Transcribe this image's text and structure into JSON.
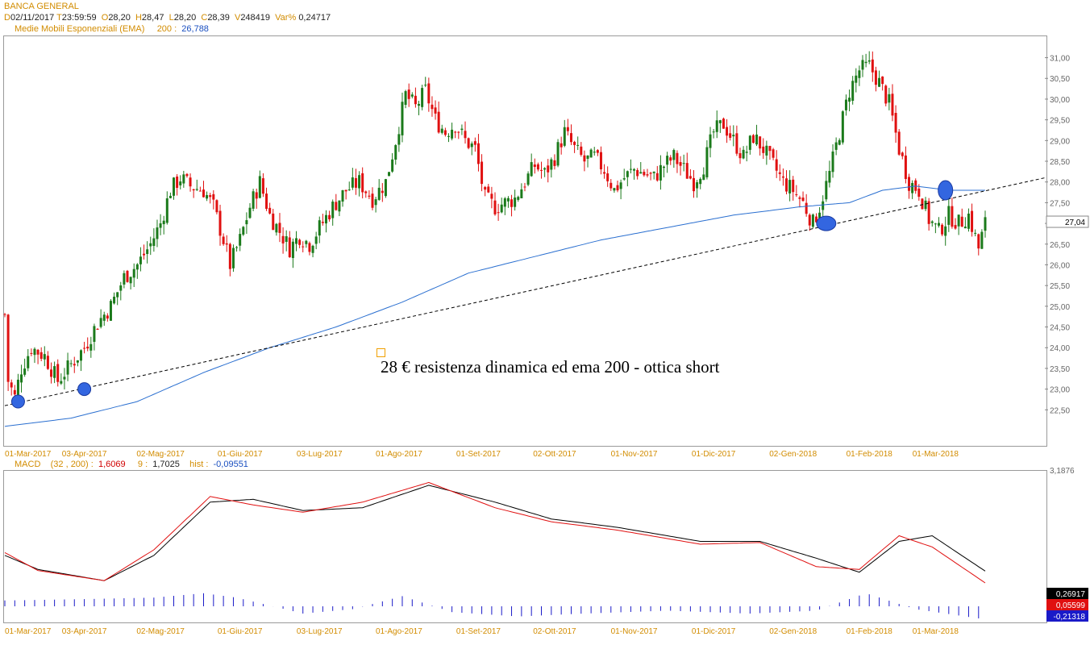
{
  "header": {
    "title": "BANCA GENERAL",
    "d_label": "D",
    "date": "02/11/2017",
    "t_label": "T",
    "time": "23:59:59",
    "o_label": "O",
    "open": "28,20",
    "h_label": "H",
    "high": "28,47",
    "l_label": "L",
    "low": "28,20",
    "c_label": "C",
    "close": "28,39",
    "v_label": "V",
    "volume": "248419",
    "var_label": "Var%",
    "var": "0,24717",
    "ema_label": "Medie Mobili Esponenziali (EMA)",
    "ema_period": "200 :",
    "ema_value": "26,788"
  },
  "macd_header": {
    "label": "MACD",
    "params": "(32 , 200) :",
    "value": "1,6069",
    "signal_period": "9 :",
    "signal_value": "1,7025",
    "hist_label": "hist :",
    "hist_value": "-0,09551"
  },
  "annotation": "28 € resistenza dinamica ed ema 200 - ottica short",
  "price_badge": "27,04",
  "macd_badges": [
    "0,26917",
    "0,05599",
    "-0,21318"
  ],
  "macd_axis_top": "3,1876",
  "colors": {
    "up": "#1b7a1b",
    "down": "#e01010",
    "ema": "#2a6fd0",
    "macd": "#000000",
    "signal": "#e01010",
    "hist": "#1a1ac8",
    "axis_text": "#d28c00",
    "marker": "#3366e0"
  },
  "chart_data": [
    {
      "type": "candlestick",
      "title": "BANCA GENERAL",
      "x_ticks": [
        "01-Mar-2017",
        "03-Apr-2017",
        "02-Mag-2017",
        "01-Giu-2017",
        "03-Lug-2017",
        "01-Ago-2017",
        "01-Set-2017",
        "02-Ott-2017",
        "01-Nov-2017",
        "01-Dic-2017",
        "02-Gen-2018",
        "01-Feb-2018",
        "01-Mar-2018"
      ],
      "y_ticks": [
        "31,00",
        "30,50",
        "30,00",
        "29,50",
        "29,00",
        "28,50",
        "28,00",
        "27,50",
        "27,00",
        "26,50",
        "26,00",
        "25,50",
        "25,00",
        "24,50",
        "24,00",
        "23,50",
        "23,00",
        "22,50"
      ],
      "ylim": [
        22.0,
        31.4
      ],
      "close_path": [
        [
          0,
          24.8
        ],
        [
          1,
          23.2
        ],
        [
          3,
          22.8
        ],
        [
          5,
          23.5
        ],
        [
          8,
          24.0
        ],
        [
          12,
          23.8
        ],
        [
          16,
          23.2
        ],
        [
          20,
          23.6
        ],
        [
          24,
          24.0
        ],
        [
          28,
          24.6
        ],
        [
          32,
          25.0
        ],
        [
          36,
          25.7
        ],
        [
          40,
          26.0
        ],
        [
          44,
          26.5
        ],
        [
          47,
          27.0
        ],
        [
          50,
          27.8
        ],
        [
          53,
          28.1
        ],
        [
          56,
          27.9
        ],
        [
          60,
          27.8
        ],
        [
          63,
          27.4
        ],
        [
          66,
          26.6
        ],
        [
          68,
          26.0
        ],
        [
          71,
          26.6
        ],
        [
          74,
          27.4
        ],
        [
          77,
          28.0
        ],
        [
          80,
          27.2
        ],
        [
          83,
          26.8
        ],
        [
          86,
          26.4
        ],
        [
          89,
          26.7
        ],
        [
          92,
          26.5
        ],
        [
          95,
          26.9
        ],
        [
          99,
          27.4
        ],
        [
          103,
          27.8
        ],
        [
          107,
          28.0
        ],
        [
          111,
          27.6
        ],
        [
          115,
          28.0
        ],
        [
          118,
          29.0
        ],
        [
          121,
          30.1
        ],
        [
          124,
          29.8
        ],
        [
          127,
          30.2
        ],
        [
          130,
          29.5
        ],
        [
          133,
          29.2
        ],
        [
          136,
          29.4
        ],
        [
          139,
          29.0
        ],
        [
          142,
          28.8
        ],
        [
          145,
          27.6
        ],
        [
          148,
          27.4
        ],
        [
          151,
          27.5
        ],
        [
          154,
          27.6
        ],
        [
          157,
          28.0
        ],
        [
          160,
          28.4
        ],
        [
          163,
          28.2
        ],
        [
          166,
          28.6
        ],
        [
          169,
          29.2
        ],
        [
          172,
          28.8
        ],
        [
          175,
          28.5
        ],
        [
          178,
          28.6
        ],
        [
          181,
          28.3
        ],
        [
          184,
          27.8
        ],
        [
          187,
          28.1
        ],
        [
          190,
          28.3
        ],
        [
          193,
          28.2
        ],
        [
          196,
          28.1
        ],
        [
          199,
          28.4
        ],
        [
          202,
          28.6
        ],
        [
          205,
          28.3
        ],
        [
          208,
          28.0
        ],
        [
          211,
          28.4
        ],
        [
          214,
          29.2
        ],
        [
          217,
          29.4
        ],
        [
          220,
          29.0
        ],
        [
          223,
          28.6
        ],
        [
          226,
          29.1
        ],
        [
          229,
          28.8
        ],
        [
          232,
          28.4
        ],
        [
          235,
          28.0
        ],
        [
          238,
          27.8
        ],
        [
          241,
          27.5
        ],
        [
          244,
          27.0
        ],
        [
          246,
          27.4
        ],
        [
          249,
          28.2
        ],
        [
          252,
          29.2
        ],
        [
          255,
          30.2
        ],
        [
          258,
          30.7
        ],
        [
          261,
          30.8
        ],
        [
          264,
          30.4
        ],
        [
          267,
          29.9
        ],
        [
          270,
          28.8
        ],
        [
          273,
          28.0
        ],
        [
          276,
          27.8
        ],
        [
          279,
          27.1
        ],
        [
          282,
          26.8
        ],
        [
          285,
          27.2
        ],
        [
          288,
          27.0
        ],
        [
          291,
          27.2
        ],
        [
          294,
          26.4
        ],
        [
          296,
          27.0
        ]
      ],
      "ema200": [
        [
          0,
          22.1
        ],
        [
          20,
          22.3
        ],
        [
          40,
          22.7
        ],
        [
          60,
          23.4
        ],
        [
          80,
          24.0
        ],
        [
          100,
          24.5
        ],
        [
          120,
          25.1
        ],
        [
          140,
          25.8
        ],
        [
          160,
          26.2
        ],
        [
          180,
          26.6
        ],
        [
          200,
          26.9
        ],
        [
          220,
          27.2
        ],
        [
          240,
          27.4
        ],
        [
          255,
          27.5
        ],
        [
          265,
          27.8
        ],
        [
          275,
          27.9
        ],
        [
          285,
          27.8
        ],
        [
          296,
          27.8
        ]
      ],
      "trendline": [
        [
          0,
          22.6
        ],
        [
          296,
          27.8
        ],
        [
          314,
          28.1
        ]
      ],
      "markers": [
        [
          4,
          22.7
        ],
        [
          24,
          23.0
        ],
        [
          248,
          27.0
        ],
        [
          284,
          27.8
        ]
      ],
      "last_value": "27,04"
    },
    {
      "type": "line",
      "title": "MACD",
      "series": [
        {
          "name": "MACD",
          "values": [
            [
              0,
              0.55
            ],
            [
              10,
              0.3
            ],
            [
              30,
              0.1
            ],
            [
              45,
              0.55
            ],
            [
              62,
              1.5
            ],
            [
              75,
              1.55
            ],
            [
              90,
              1.35
            ],
            [
              108,
              1.4
            ],
            [
              128,
              1.8
            ],
            [
              148,
              1.5
            ],
            [
              165,
              1.2
            ],
            [
              185,
              1.05
            ],
            [
              210,
              0.8
            ],
            [
              228,
              0.8
            ],
            [
              245,
              0.5
            ],
            [
              258,
              0.25
            ],
            [
              270,
              0.8
            ],
            [
              280,
              0.9
            ],
            [
              296,
              0.27
            ]
          ]
        },
        {
          "name": "Signal",
          "values": [
            [
              0,
              0.6
            ],
            [
              10,
              0.28
            ],
            [
              30,
              0.1
            ],
            [
              45,
              0.65
            ],
            [
              62,
              1.6
            ],
            [
              75,
              1.45
            ],
            [
              90,
              1.32
            ],
            [
              108,
              1.5
            ],
            [
              128,
              1.85
            ],
            [
              148,
              1.4
            ],
            [
              165,
              1.15
            ],
            [
              185,
              1.0
            ],
            [
              210,
              0.75
            ],
            [
              228,
              0.78
            ],
            [
              245,
              0.35
            ],
            [
              258,
              0.3
            ],
            [
              270,
              0.9
            ],
            [
              280,
              0.7
            ],
            [
              296,
              0.06
            ]
          ]
        }
      ],
      "histogram_amplitude": [
        [
          0,
          0.08
        ],
        [
          25,
          0.1
        ],
        [
          45,
          0.12
        ],
        [
          60,
          0.18
        ],
        [
          70,
          0.12
        ],
        [
          90,
          -0.1
        ],
        [
          105,
          -0.04
        ],
        [
          120,
          0.14
        ],
        [
          135,
          -0.08
        ],
        [
          155,
          -0.14
        ],
        [
          175,
          -0.1
        ],
        [
          200,
          -0.06
        ],
        [
          225,
          -0.1
        ],
        [
          245,
          -0.06
        ],
        [
          260,
          0.18
        ],
        [
          275,
          -0.04
        ],
        [
          296,
          -0.18
        ]
      ],
      "axis_top": "3,1876",
      "last_values": [
        "0,26917",
        "0,05599",
        "-0,21318"
      ]
    }
  ]
}
